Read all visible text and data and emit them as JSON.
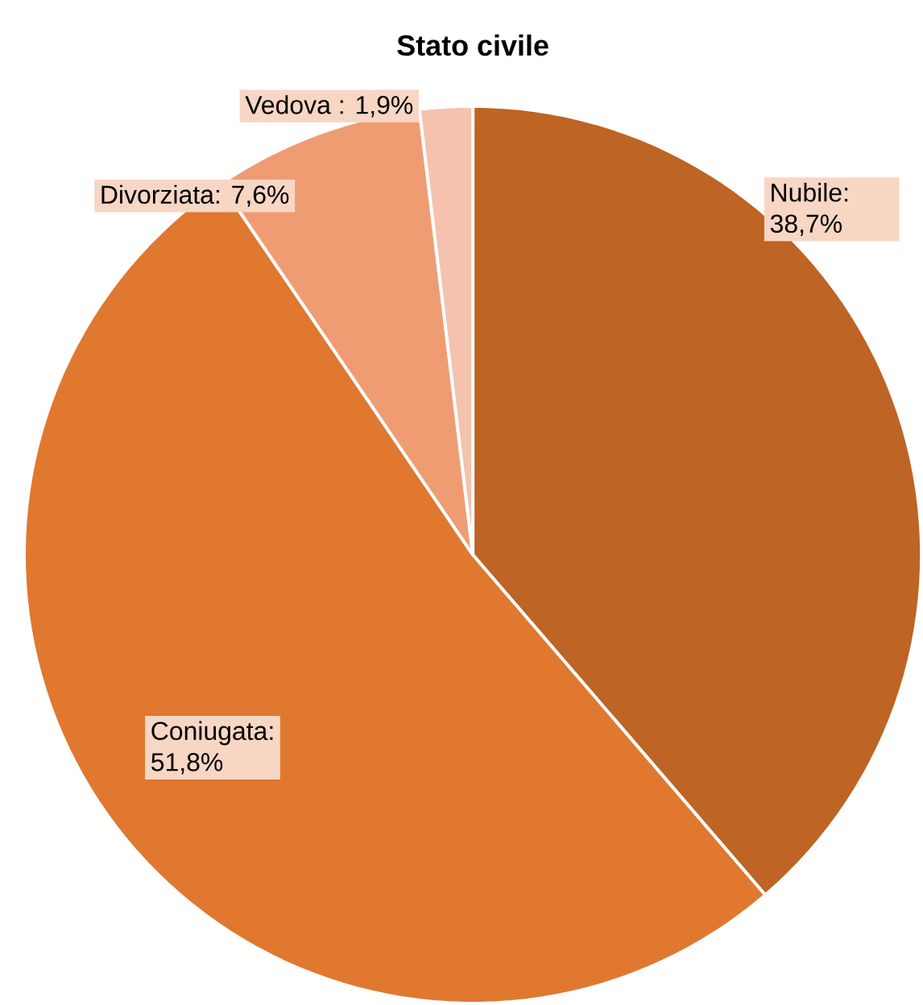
{
  "chart_data": {
    "type": "pie",
    "title": "Stato civile",
    "categories": [
      "Nubile",
      "Coniugata",
      "Divorziata",
      "Vedova"
    ],
    "values": [
      38.7,
      51.8,
      7.6,
      1.9
    ],
    "value_labels": [
      ": 38,7%",
      ": 51,8%",
      ": 7,6%",
      " : 1,9%"
    ],
    "colors": [
      "#be6424",
      "#e07830",
      "#f09c72",
      "#f5c2ae"
    ]
  }
}
